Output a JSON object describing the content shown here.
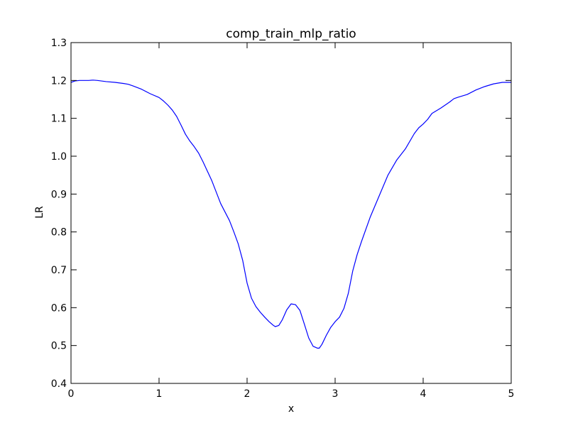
{
  "chart_data": {
    "type": "line",
    "title": "comp_train_mlp_ratio",
    "xlabel": "x",
    "ylabel": "LR",
    "xlim": [
      0,
      5
    ],
    "ylim": [
      0.4,
      1.3
    ],
    "xticks": [
      "0",
      "1",
      "2",
      "3",
      "4",
      "5"
    ],
    "yticks": [
      "0.4",
      "0.5",
      "0.6",
      "0.7",
      "0.8",
      "0.9",
      "1.0",
      "1.1",
      "1.2",
      "1.3"
    ],
    "grid": false,
    "line_color": "#0000ff",
    "series": [
      {
        "x": [
          0,
          0.05,
          0.1,
          0.2,
          0.25,
          0.3,
          0.4,
          0.5,
          0.6,
          0.65,
          0.7,
          0.8,
          0.9,
          1.0,
          1.05,
          1.1,
          1.15,
          1.2,
          1.25,
          1.3,
          1.35,
          1.4,
          1.45,
          1.5,
          1.6,
          1.7,
          1.8,
          1.85,
          1.9,
          1.95,
          2.0,
          2.05,
          2.1,
          2.15,
          2.2,
          2.25,
          2.3,
          2.32,
          2.36,
          2.4,
          2.45,
          2.5,
          2.55,
          2.6,
          2.65,
          2.7,
          2.75,
          2.8,
          2.82,
          2.85,
          2.9,
          2.95,
          3.0,
          3.05,
          3.1,
          3.15,
          3.2,
          3.25,
          3.3,
          3.4,
          3.5,
          3.6,
          3.7,
          3.8,
          3.9,
          3.95,
          4.0,
          4.05,
          4.1,
          4.2,
          4.3,
          4.35,
          4.4,
          4.5,
          4.6,
          4.7,
          4.8,
          4.9,
          5.0
        ],
        "y": [
          1.195,
          1.199,
          1.2,
          1.2,
          1.201,
          1.2,
          1.197,
          1.195,
          1.192,
          1.19,
          1.186,
          1.177,
          1.165,
          1.155,
          1.146,
          1.135,
          1.122,
          1.105,
          1.082,
          1.058,
          1.04,
          1.025,
          1.008,
          0.985,
          0.935,
          0.875,
          0.83,
          0.8,
          0.768,
          0.725,
          0.665,
          0.625,
          0.603,
          0.588,
          0.575,
          0.563,
          0.553,
          0.55,
          0.553,
          0.568,
          0.594,
          0.61,
          0.608,
          0.593,
          0.557,
          0.52,
          0.498,
          0.493,
          0.493,
          0.503,
          0.527,
          0.548,
          0.563,
          0.575,
          0.598,
          0.638,
          0.697,
          0.74,
          0.775,
          0.84,
          0.895,
          0.95,
          0.99,
          1.02,
          1.06,
          1.075,
          1.085,
          1.097,
          1.113,
          1.127,
          1.143,
          1.152,
          1.156,
          1.163,
          1.175,
          1.184,
          1.191,
          1.195,
          1.195
        ]
      }
    ]
  }
}
